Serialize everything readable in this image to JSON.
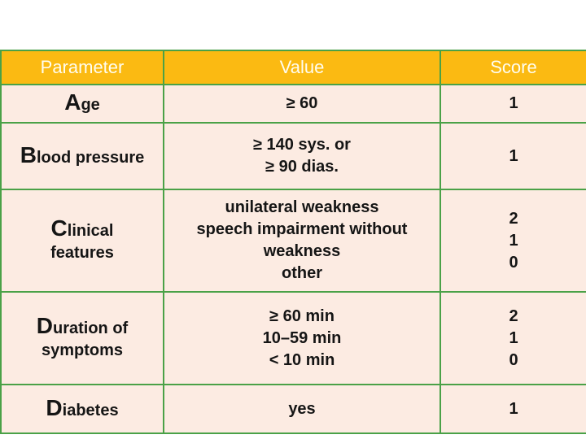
{
  "theme": {
    "page_bg": "#ffffff",
    "header_bg": "#fbba12",
    "header_text_color": "#fffdf0",
    "body_bg": "#fcebe2",
    "border_color": "#4aa147",
    "body_text_color": "#151515"
  },
  "table": {
    "columns": [
      {
        "label": "Parameter"
      },
      {
        "label": "Value"
      },
      {
        "label": "Score"
      }
    ],
    "rows": [
      {
        "param": {
          "initial": "A",
          "rest": "ge"
        },
        "value": [
          "≥ 60"
        ],
        "score": [
          "1"
        ]
      },
      {
        "param": {
          "initial": "B",
          "rest": "lood pressure"
        },
        "value": [
          "≥ 140 sys. or",
          "≥ 90 dias."
        ],
        "score": [
          "1"
        ]
      },
      {
        "param": {
          "initial": "C",
          "rest": "linical",
          "line2": "features"
        },
        "value": [
          "unilateral weakness",
          "speech impairment without weakness",
          "other"
        ],
        "score": [
          "2",
          "1",
          "0"
        ]
      },
      {
        "param": {
          "initial": "D",
          "rest": "uration of",
          "line2": "symptoms"
        },
        "value": [
          "≥ 60 min",
          "10–59 min",
          "< 10 min"
        ],
        "score": [
          "2",
          "1",
          "0"
        ]
      },
      {
        "param": {
          "initial": "D",
          "rest": "iabetes"
        },
        "value": [
          "yes"
        ],
        "score": [
          "1"
        ]
      }
    ]
  }
}
